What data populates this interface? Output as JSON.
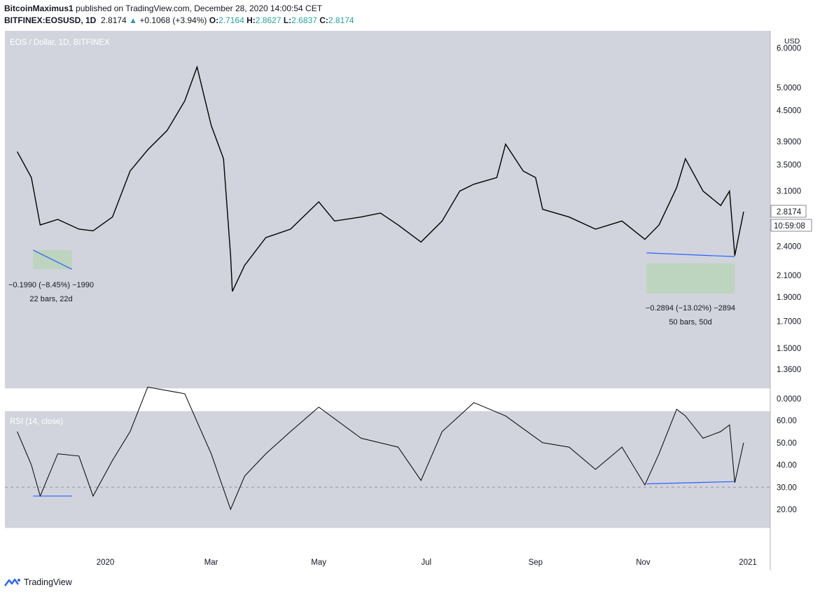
{
  "header": {
    "author": "BitcoinMaximus1",
    "published": "published on TradingView.com, December 28, 2020 14:00:54 CET",
    "symbol": "BITFINEX:EOSUSD, 1D",
    "last": "2.8174",
    "change": "+0.1068 (+3.94%)",
    "open_label": "O:",
    "open": "2.7164",
    "high_label": "H:",
    "high": "2.8627",
    "low_label": "L:",
    "low": "2.6837",
    "close_label": "C:",
    "close": "2.8174"
  },
  "colors": {
    "pane_bg": "#d1d4dc",
    "candle": "#000000",
    "trendline": "#2962ff",
    "measure_fill": "#b8d3b8",
    "axis_text": "#131722",
    "price_label_bg": "#ffffff"
  },
  "price_pane": {
    "legend": "EOS / Dollar, 1D, BITFINEX",
    "currency": "USD",
    "ticks": [
      "6.0000",
      "5.0000",
      "4.5000",
      "3.9000",
      "3.5000",
      "3.1000",
      "2.4000",
      "2.1000",
      "1.9000",
      "1.7000",
      "1.5000",
      "1.3600"
    ],
    "last_price_label": "2.8174",
    "countdown_label": "10:59:08"
  },
  "rsi_pane": {
    "legend": "RSI (14, close)",
    "ticks": [
      "60.00",
      "50.00",
      "40.00",
      "30.00",
      "20.00"
    ],
    "extra_tick": "0.0000",
    "oversold_level": 30
  },
  "time_axis": [
    "2020",
    "Mar",
    "May",
    "Jul",
    "Sep",
    "Nov",
    "2021"
  ],
  "annotations": {
    "left_measure": {
      "line1": "−0.1990 (−8.45%) −1990",
      "line2": "22 bars, 22d"
    },
    "right_measure": {
      "line1": "−0.2894 (−13.02%) −2894",
      "line2": "50 bars, 50d"
    }
  },
  "footer": {
    "brand": "TradingView"
  },
  "chart_data": {
    "type": "line",
    "title": "EOS / Dollar, 1D, BITFINEX",
    "ylabel": "USD",
    "yscale": "log",
    "ylim": [
      1.3,
      6.0
    ],
    "x": [
      "2019-11-12",
      "2019-11-20",
      "2019-11-25",
      "2019-12-05",
      "2019-12-17",
      "2019-12-25",
      "2020-01-05",
      "2020-01-15",
      "2020-01-25",
      "2020-02-05",
      "2020-02-15",
      "2020-02-22",
      "2020-03-01",
      "2020-03-08",
      "2020-03-12",
      "2020-03-13",
      "2020-03-20",
      "2020-04-01",
      "2020-04-15",
      "2020-05-01",
      "2020-05-10",
      "2020-05-25",
      "2020-06-05",
      "2020-06-15",
      "2020-06-28",
      "2020-07-10",
      "2020-07-20",
      "2020-07-28",
      "2020-08-10",
      "2020-08-15",
      "2020-08-25",
      "2020-09-01",
      "2020-09-05",
      "2020-09-20",
      "2020-10-05",
      "2020-10-20",
      "2020-11-02",
      "2020-11-10",
      "2020-11-20",
      "2020-11-25",
      "2020-12-05",
      "2020-12-15",
      "2020-12-20",
      "2020-12-23",
      "2020-12-28"
    ],
    "close": [
      3.72,
      3.3,
      2.65,
      2.72,
      2.6,
      2.58,
      2.75,
      3.4,
      3.75,
      4.1,
      4.7,
      5.5,
      4.2,
      3.6,
      2.3,
      1.95,
      2.2,
      2.5,
      2.6,
      2.95,
      2.7,
      2.75,
      2.8,
      2.65,
      2.45,
      2.7,
      3.1,
      3.2,
      3.3,
      3.85,
      3.4,
      3.3,
      2.85,
      2.75,
      2.6,
      2.7,
      2.48,
      2.65,
      3.15,
      3.6,
      3.1,
      2.9,
      3.1,
      2.3,
      2.8174
    ],
    "rsi_x": [
      "2019-11-12",
      "2019-11-20",
      "2019-11-25",
      "2019-12-05",
      "2019-12-17",
      "2019-12-25",
      "2020-01-05",
      "2020-01-15",
      "2020-01-25",
      "2020-02-15",
      "2020-03-01",
      "2020-03-12",
      "2020-03-20",
      "2020-04-01",
      "2020-04-15",
      "2020-05-01",
      "2020-05-25",
      "2020-06-15",
      "2020-06-28",
      "2020-07-10",
      "2020-07-28",
      "2020-08-15",
      "2020-09-05",
      "2020-09-20",
      "2020-10-05",
      "2020-10-20",
      "2020-11-02",
      "2020-11-10",
      "2020-11-20",
      "2020-11-25",
      "2020-12-05",
      "2020-12-15",
      "2020-12-20",
      "2020-12-23",
      "2020-12-28"
    ],
    "rsi": [
      55,
      40,
      26,
      45,
      44,
      26,
      42,
      55,
      75,
      72,
      45,
      20,
      35,
      45,
      55,
      66,
      52,
      48,
      33,
      55,
      68,
      62,
      50,
      48,
      38,
      48,
      31,
      45,
      65,
      62,
      52,
      55,
      58,
      32,
      50
    ],
    "divergences": [
      {
        "pane": "price",
        "from": [
          "2019-11-21",
          2.36
        ],
        "to": [
          "2019-12-13",
          2.16
        ]
      },
      {
        "pane": "price",
        "from": [
          "2020-11-03",
          2.33
        ],
        "to": [
          "2020-12-23",
          2.29
        ]
      },
      {
        "pane": "rsi",
        "from": [
          "2019-11-21",
          26
        ],
        "to": [
          "2019-12-13",
          26
        ]
      },
      {
        "pane": "rsi",
        "from": [
          "2020-11-03",
          31.5
        ],
        "to": [
          "2020-12-23",
          32.5
        ]
      }
    ]
  }
}
